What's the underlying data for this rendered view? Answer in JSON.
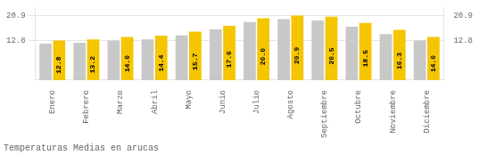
{
  "chart_data": {
    "type": "bar",
    "title": "Temperaturas Medias en arucas",
    "categories": [
      "Enero",
      "Febrero",
      "Marzo",
      "Abril",
      "Mayo",
      "Junio",
      "Julio",
      "Agosto",
      "Septiembre",
      "Octubre",
      "Noviembre",
      "Diciembre"
    ],
    "series": [
      {
        "color": "#C8C8C8",
        "values": [
          11.8,
          12.1,
          12.8,
          13.2,
          14.5,
          16.4,
          18.8,
          19.7,
          19.3,
          17.3,
          14.9,
          12.8
        ]
      },
      {
        "color": "#F5C500",
        "values": [
          12.8,
          13.2,
          14.0,
          14.4,
          15.7,
          17.6,
          20.0,
          20.9,
          20.5,
          18.5,
          16.3,
          14.0
        ],
        "data_labels": true,
        "value_labels": [
          "12.8",
          "13.2",
          "14.0",
          "14.4",
          "15.7",
          "17.6",
          "20.0",
          "20.9",
          "20.5",
          "18.5",
          "16.3",
          "14.0"
        ]
      }
    ],
    "ylim": [
      0,
      23.5
    ],
    "yticks": [
      12.8,
      20.9
    ],
    "y2lim": [
      0,
      23.5
    ],
    "y2ticks": [
      12.8,
      20.9
    ],
    "grid": true
  }
}
